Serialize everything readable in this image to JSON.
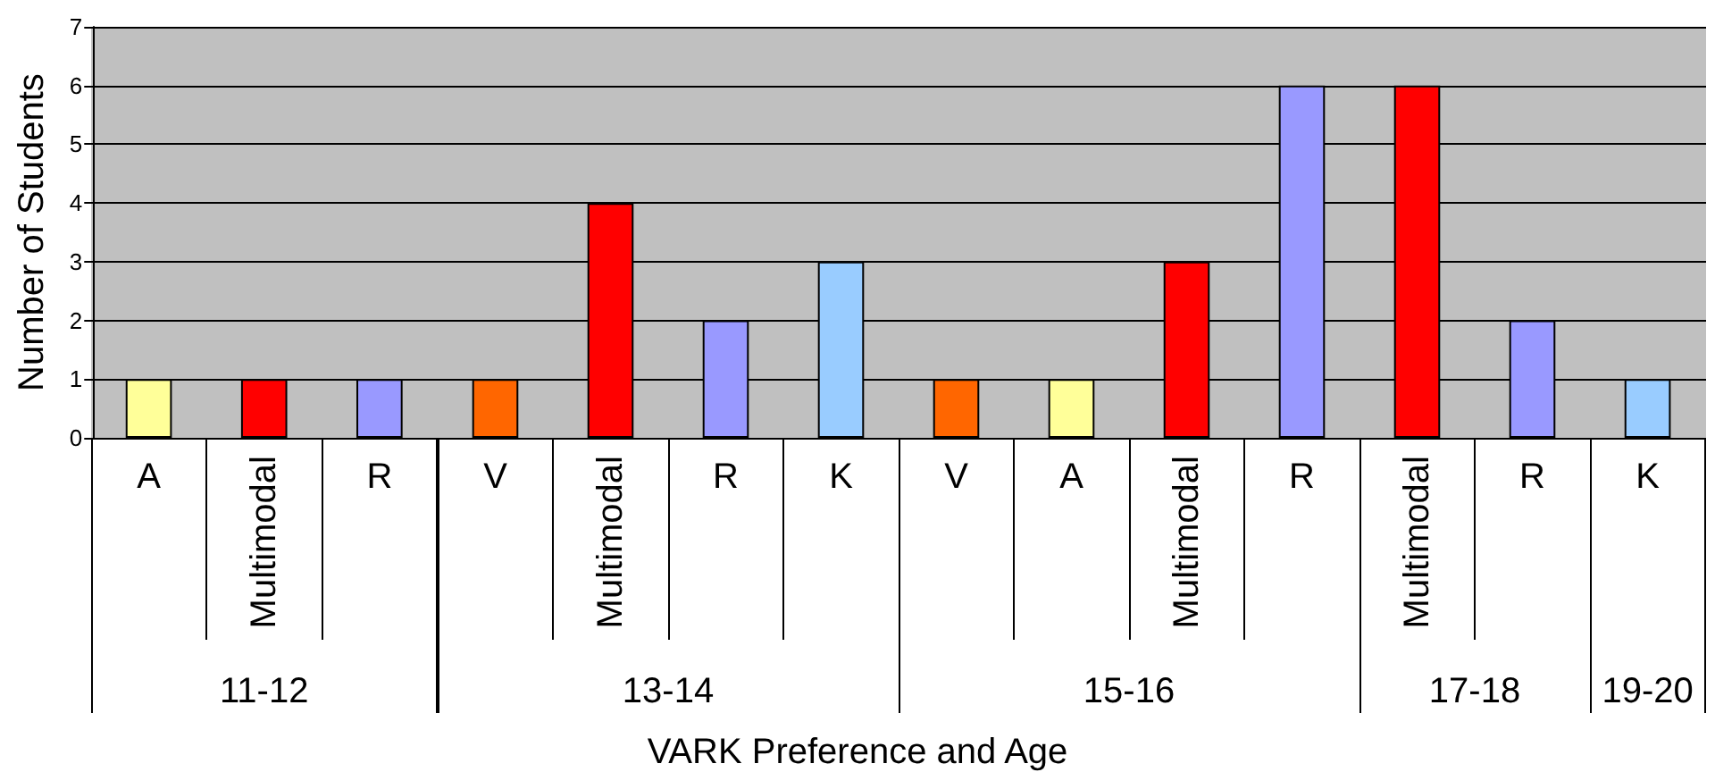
{
  "chart_data": [
    {
      "type": "bar",
      "xlabel": "11-12",
      "ylabel": "Number of Students",
      "categories": [
        "A",
        "Multimodal",
        "R"
      ],
      "values": [
        1,
        1,
        1
      ],
      "colors": [
        "#ffff99",
        "#ff0000",
        "#9999ff"
      ],
      "ylim": [
        0,
        7
      ],
      "yticks": [
        0,
        1,
        2,
        3,
        4,
        5,
        6,
        7
      ],
      "grid": "y",
      "annotations": [
        "VARK Preference and Age"
      ]
    },
    {
      "type": "bar",
      "xlabel": "13-14",
      "categories": [
        "V",
        "Multimodal",
        "R",
        "K"
      ],
      "values": [
        1,
        4,
        2,
        3
      ],
      "colors": [
        "#ff6600",
        "#ff0000",
        "#9999ff",
        "#99ccff"
      ],
      "ylim": [
        0,
        7
      ],
      "tick_labels": "x"
    },
    {
      "type": "bar",
      "xlabel": "15-16",
      "categories": [
        "V",
        "A",
        "Multimodal",
        "R"
      ],
      "values": [
        1,
        1,
        3,
        6
      ],
      "colors": [
        "#ff6600",
        "#ffff99",
        "#ff0000",
        "#9999ff"
      ],
      "ylim": [
        0,
        7
      ],
      "tick_labels": "x"
    },
    {
      "type": "bar",
      "xlabel": "17-18",
      "categories": [
        "Multimodal",
        "R"
      ],
      "values": [
        6,
        2
      ],
      "colors": [
        "#ff0000",
        "#9999ff"
      ],
      "ylim": [
        0,
        7
      ],
      "tick_labels": "x"
    },
    {
      "type": "bar",
      "xlabel": "19-20",
      "categories": [
        "K"
      ],
      "values": [
        1
      ],
      "colors": [
        "#99ccff"
      ],
      "ylim": [
        0,
        7
      ],
      "tick_labels": "x"
    }
  ]
}
